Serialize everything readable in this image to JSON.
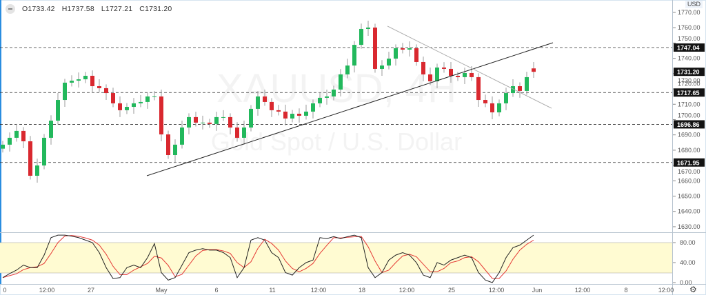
{
  "legend": {
    "open": "O1733.42",
    "high": "H1737.58",
    "low": "L1727.21",
    "close": "C1731.20"
  },
  "watermark": {
    "symbol": "XAUUSD, 4H",
    "description": "Gold Spot / U.S. Dollar"
  },
  "price_axis": {
    "currency": "USD",
    "ticks": [
      "1770.00",
      "1760.00",
      "1750.00",
      "1740.00",
      "1730.00",
      "1720.00",
      "1710.00",
      "1700.00",
      "1690.00",
      "1680.00",
      "1670.00",
      "1660.00",
      "1650.00",
      "1640.00",
      "1630.00"
    ],
    "badges": [
      {
        "label": "1747.04",
        "value": 1747.04
      },
      {
        "label": "1731.20",
        "value": 1731.2
      },
      {
        "label": "1717.65",
        "value": 1717.65
      },
      {
        "label": "1696.86",
        "value": 1696.86
      },
      {
        "label": "1671.95",
        "value": 1671.95
      }
    ]
  },
  "stoch_axis": {
    "ticks": [
      "80.00",
      "40.00",
      "0.00"
    ],
    "band": [
      20,
      80
    ]
  },
  "time_axis": {
    "labels": [
      "0",
      "12:00",
      "27",
      "May",
      "6",
      "11",
      "12:00",
      "18",
      "12:00",
      "25",
      "12:00",
      "Jun",
      "12:00",
      "8",
      "12:00"
    ]
  },
  "colors": {
    "up": "#22b85c",
    "down": "#d9282f",
    "wick": "#9a9a9a",
    "badge": "#131313",
    "stoch_k": "#222222",
    "stoch_d": "#e53935",
    "band": "#fffbd2"
  },
  "chart_data": {
    "type": "candlestick",
    "ylim": [
      1625,
      1775
    ],
    "closes": [
      1683.6,
      1688.1,
      1692.6,
      1685.8,
      1663.3,
      1670.0,
      1688.1,
      1699.3,
      1712.8,
      1724.1,
      1725.4,
      1726.3,
      1728.6,
      1721.8,
      1720.5,
      1717.3,
      1710.6,
      1706.1,
      1708.3,
      1710.6,
      1711.5,
      1715.1,
      1715.1,
      1690.3,
      1676.8,
      1683.6,
      1694.8,
      1701.6,
      1698.0,
      1698.0,
      1697.1,
      1701.6,
      1701.6,
      1694.8,
      1688.1,
      1694.8,
      1707.0,
      1715.1,
      1711.5,
      1706.1,
      1705.2,
      1700.7,
      1703.8,
      1702.5,
      1705.2,
      1710.6,
      1714.2,
      1715.1,
      1719.6,
      1729.5,
      1735.3,
      1748.8,
      1759.2,
      1760.1,
      1733.1,
      1735.3,
      1739.8,
      1746.6,
      1745.7,
      1746.6,
      1737.6,
      1729.5,
      1725.0,
      1734.0,
      1733.1,
      1728.6,
      1727.7,
      1730.4,
      1727.7,
      1712.8,
      1710.6,
      1704.7,
      1710.6,
      1717.3,
      1721.8,
      1718.7,
      1727.7,
      1731.2
    ],
    "first_open": 1681.0,
    "last_ohlc": [
      1733.42,
      1737.58,
      1727.21,
      1731.2
    ],
    "horizontal_levels": [
      1747.04,
      1717.65,
      1696.86,
      1671.95
    ],
    "trendlines": [
      {
        "name": "rising-trendline",
        "from_price": 1663.3,
        "to_price": 1750.2
      },
      {
        "name": "falling-trendline",
        "from_price": 1761.0,
        "to_price": 1707.4
      }
    ],
    "stochastic": {
      "ylim": [
        0,
        100
      ],
      "k": [
        10,
        18,
        25,
        35,
        30,
        30,
        55,
        90,
        95,
        95,
        93,
        90,
        85,
        80,
        60,
        30,
        8,
        10,
        30,
        35,
        30,
        50,
        78,
        20,
        5,
        10,
        35,
        60,
        65,
        68,
        65,
        65,
        60,
        50,
        10,
        30,
        85,
        90,
        85,
        60,
        50,
        20,
        15,
        30,
        40,
        45,
        90,
        88,
        92,
        88,
        92,
        95,
        90,
        30,
        10,
        20,
        45,
        55,
        60,
        55,
        40,
        15,
        10,
        40,
        35,
        45,
        50,
        55,
        50,
        20,
        5,
        0,
        20,
        50,
        70,
        75,
        85,
        95
      ]
    }
  }
}
